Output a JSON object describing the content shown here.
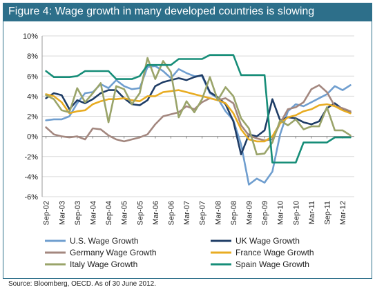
{
  "title": "Figure 4: Wage growth in many developed countries is slowing",
  "source": "Source:   Bloomberg, OECD. As of 30 June 2012.",
  "chart_data": {
    "type": "line",
    "title": "Figure 4: Wage growth in many developed countries is slowing",
    "xlabel": "",
    "ylabel": "",
    "ylim": [
      -6,
      10
    ],
    "yticks": [
      -6,
      -4,
      -2,
      0,
      2,
      4,
      6,
      8,
      10
    ],
    "ytick_labels": [
      "-6%",
      "-4%",
      "-2%",
      "0%",
      "2%",
      "4%",
      "6%",
      "8%",
      "10%"
    ],
    "x_tick_labels": [
      "Sep-02",
      "Mar-03",
      "Sep-03",
      "Mar-04",
      "Sep-04",
      "Mar-05",
      "Sep-05",
      "Mar-06",
      "Sep-06",
      "Mar-07",
      "Sep-07",
      "Mar-08",
      "Sep-08",
      "Mar-09",
      "Sep-09",
      "Mar-10",
      "Sep-10",
      "Mar-11",
      "Sep-11",
      "Mar-12"
    ],
    "grid": "horizontal",
    "legend": "bottom",
    "x": [
      "Sep-02",
      "Dec-02",
      "Mar-03",
      "Jun-03",
      "Sep-03",
      "Dec-03",
      "Mar-04",
      "Jun-04",
      "Sep-04",
      "Dec-04",
      "Mar-05",
      "Jun-05",
      "Sep-05",
      "Dec-05",
      "Mar-06",
      "Jun-06",
      "Sep-06",
      "Dec-06",
      "Mar-07",
      "Jun-07",
      "Sep-07",
      "Dec-07",
      "Mar-08",
      "Jun-08",
      "Sep-08",
      "Dec-08",
      "Mar-09",
      "Jun-09",
      "Sep-09",
      "Dec-09",
      "Mar-10",
      "Jun-10",
      "Sep-10",
      "Dec-10",
      "Mar-11",
      "Jun-11",
      "Sep-11",
      "Dec-11",
      "Mar-12",
      "Jun-12"
    ],
    "series": [
      {
        "name": "U.S. Wage Growth",
        "color": "#6f9ecf",
        "values": [
          1.6,
          1.7,
          1.7,
          2.0,
          3.3,
          4.3,
          4.4,
          5.2,
          4.8,
          5.6,
          5.0,
          4.7,
          4.8,
          6.9,
          7.0,
          6.5,
          5.8,
          6.7,
          6.3,
          6.0,
          6.0,
          4.3,
          3.8,
          2.5,
          1.6,
          -0.8,
          -4.8,
          -4.2,
          -4.6,
          -3.5,
          0.2,
          2.5,
          3.2,
          3.0,
          3.4,
          3.8,
          4.2,
          5.0,
          4.6,
          5.1
        ]
      },
      {
        "name": "UK Wage Growth",
        "color": "#1f3d66",
        "values": [
          3.8,
          4.3,
          4.1,
          2.7,
          3.6,
          3.3,
          3.7,
          4.3,
          4.6,
          4.6,
          3.8,
          3.2,
          3.1,
          3.6,
          5.0,
          5.4,
          5.6,
          5.8,
          5.6,
          5.9,
          6.1,
          4.4,
          3.9,
          3.2,
          1.5,
          -1.8,
          0.2,
          0.0,
          0.6,
          3.7,
          1.6,
          1.9,
          1.8,
          1.4,
          1.2,
          1.5,
          2.8,
          3.3,
          2.7,
          2.4
        ]
      },
      {
        "name": "Germany Wage Growth",
        "color": "#a3877f",
        "values": [
          0.9,
          0.2,
          0.0,
          -0.1,
          0.0,
          -0.3,
          0.8,
          0.7,
          0.1,
          -0.3,
          -0.5,
          -0.3,
          -0.1,
          0.2,
          1.2,
          2.0,
          2.2,
          2.4,
          3.0,
          2.7,
          3.4,
          3.8,
          3.6,
          3.8,
          3.3,
          1.1,
          0.1,
          -0.2,
          -0.4,
          -0.3,
          1.3,
          2.7,
          2.9,
          3.4,
          4.7,
          5.1,
          4.4,
          3.0,
          2.8,
          2.5
        ]
      },
      {
        "name": "France Wage Growth",
        "color": "#e8ac22",
        "values": [
          4.2,
          4.0,
          3.4,
          2.3,
          2.5,
          2.6,
          3.2,
          3.5,
          3.7,
          3.7,
          3.8,
          3.6,
          3.5,
          4.0,
          4.0,
          4.4,
          4.5,
          4.6,
          4.4,
          4.2,
          4.0,
          3.8,
          3.6,
          3.3,
          2.3,
          0.7,
          -0.3,
          -0.5,
          -0.5,
          0.0,
          1.3,
          1.9,
          2.1,
          2.5,
          2.7,
          3.1,
          3.2,
          3.0,
          2.6,
          2.3
        ]
      },
      {
        "name": "Italy Wage Growth",
        "color": "#9aa46a",
        "values": [
          4.1,
          3.7,
          2.6,
          2.4,
          4.8,
          3.4,
          4.3,
          5.3,
          1.4,
          5.0,
          4.7,
          3.2,
          4.3,
          7.8,
          5.7,
          7.5,
          6.4,
          1.9,
          3.5,
          2.4,
          3.7,
          5.9,
          3.6,
          4.9,
          4.0,
          1.8,
          0.8,
          -1.8,
          -1.7,
          -0.6,
          1.6,
          1.1,
          1.7,
          0.7,
          1.0,
          1.0,
          2.9,
          0.6,
          0.6,
          0.1
        ]
      },
      {
        "name": "Spain Wage Growth",
        "color": "#168d78",
        "values": [
          6.5,
          5.9,
          5.9,
          5.9,
          6.0,
          6.5,
          6.5,
          6.5,
          6.5,
          5.7,
          5.7,
          5.7,
          6.0,
          7.1,
          7.1,
          7.1,
          7.1,
          7.7,
          7.7,
          7.7,
          7.7,
          8.1,
          8.1,
          8.1,
          8.1,
          6.1,
          6.1,
          6.1,
          6.1,
          -2.6,
          -2.6,
          -2.6,
          -2.6,
          -0.6,
          -0.6,
          -0.6,
          -0.6,
          -0.1,
          -0.1,
          -0.1
        ]
      }
    ]
  }
}
